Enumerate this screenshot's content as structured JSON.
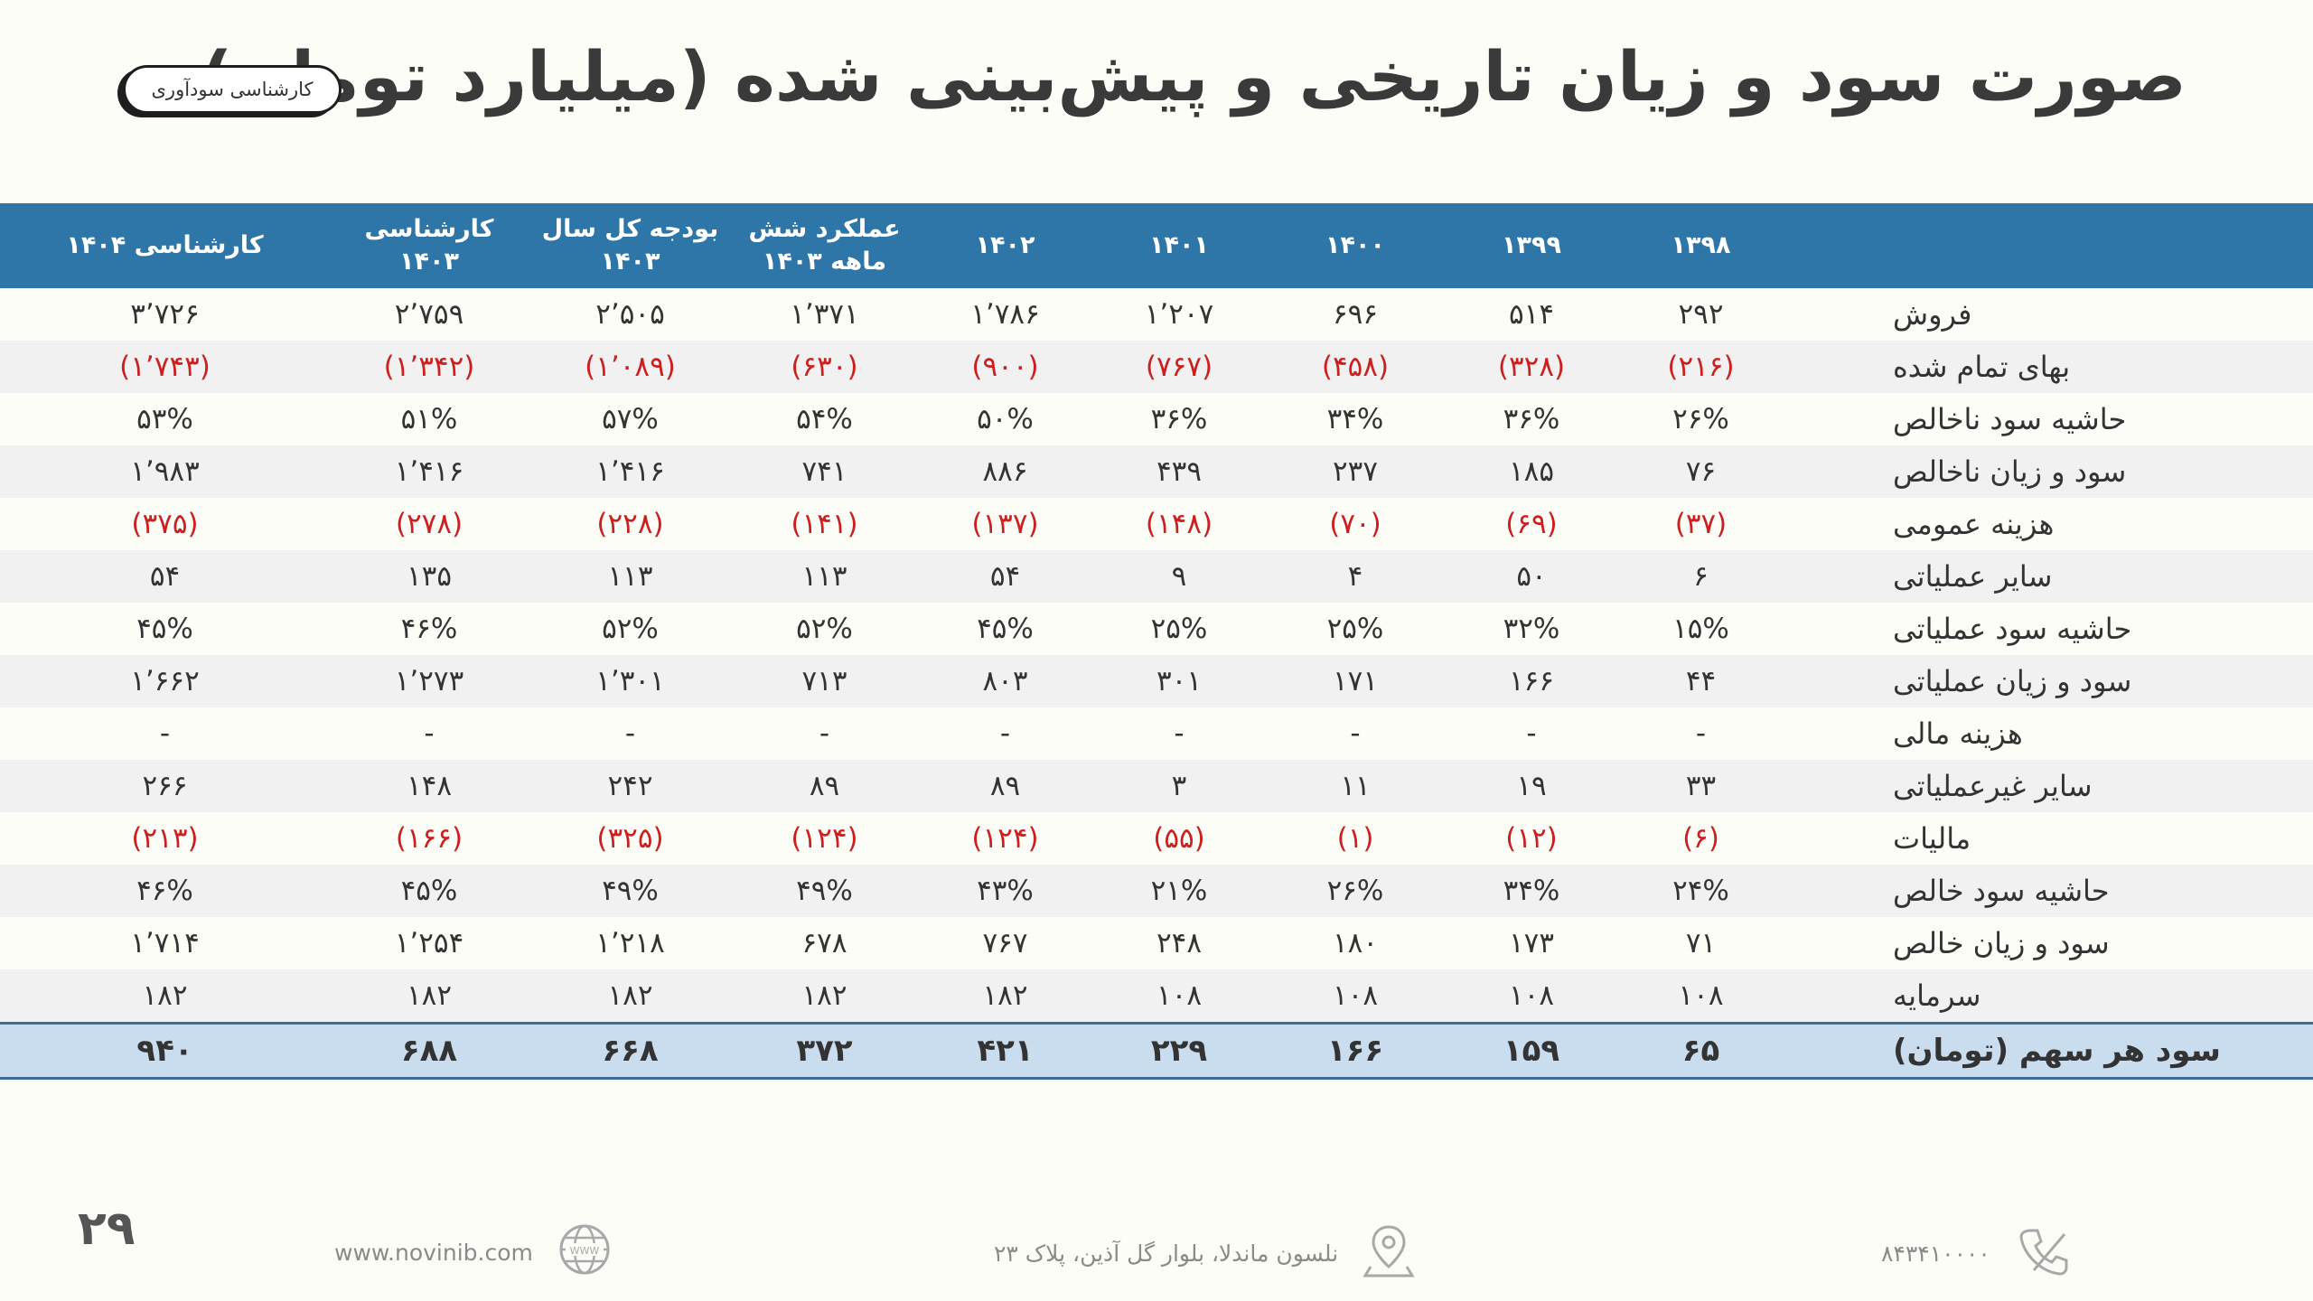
{
  "title": "صورت سود و زیان تاریخی و پیش‌بینی شده (میلیارد تومان)",
  "badge": "کارشناسی سودآوری",
  "table": {
    "headers": [
      "",
      "۱۳۹۸",
      "۱۳۹۹",
      "۱۴۰۰",
      "۱۴۰۱",
      "۱۴۰۲",
      "عملکرد شش ماهه ۱۴۰۳",
      "بودجه کل سال ۱۴۰۳",
      "کارشناسی ۱۴۰۳",
      "کارشناسی ۱۴۰۴"
    ],
    "rows": [
      {
        "label": "فروش",
        "cells": [
          "۲۹۲",
          "۵۱۴",
          "۶۹۶",
          "۱٬۲۰۷",
          "۱٬۷۸۶",
          "۱٬۳۷۱",
          "۲٬۵۰۵",
          "۲٬۷۵۹",
          "۳٬۷۲۶"
        ]
      },
      {
        "label": "بهای تمام شده",
        "cells": [
          "(۲۱۶)",
          "(۳۲۸)",
          "(۴۵۸)",
          "(۷۶۷)",
          "(۹۰۰)",
          "(۶۳۰)",
          "(۱٬۰۸۹)",
          "(۱٬۳۴۲)",
          "(۱٬۷۴۳)"
        ]
      },
      {
        "label": "حاشیه سود ناخالص",
        "cells": [
          "۲۶%",
          "۳۶%",
          "۳۴%",
          "۳۶%",
          "۵۰%",
          "۵۴%",
          "۵۷%",
          "۵۱%",
          "۵۳%"
        ]
      },
      {
        "label": "سود و زیان ناخالص",
        "cells": [
          "۷۶",
          "۱۸۵",
          "۲۳۷",
          "۴۳۹",
          "۸۸۶",
          "۷۴۱",
          "۱٬۴۱۶",
          "۱٬۴۱۶",
          "۱٬۹۸۳"
        ]
      },
      {
        "label": "هزینه عمومی",
        "cells": [
          "(۳۷)",
          "(۶۹)",
          "(۷۰)",
          "(۱۴۸)",
          "(۱۳۷)",
          "(۱۴۱)",
          "(۲۲۸)",
          "(۲۷۸)",
          "(۳۷۵)"
        ]
      },
      {
        "label": "سایر  عملیاتی",
        "cells": [
          "۶",
          "۵۰",
          "۴",
          "۹",
          "۵۴",
          "۱۱۳",
          "۱۱۳",
          "۱۳۵",
          "۵۴"
        ]
      },
      {
        "label": "حاشیه سود عملیاتی",
        "cells": [
          "۱۵%",
          "۳۲%",
          "۲۵%",
          "۲۵%",
          "۴۵%",
          "۵۲%",
          "۵۲%",
          "۴۶%",
          "۴۵%"
        ]
      },
      {
        "label": "سود و زیان عملیاتی",
        "cells": [
          "۴۴",
          "۱۶۶",
          "۱۷۱",
          "۳۰۱",
          "۸۰۳",
          "۷۱۳",
          "۱٬۳۰۱",
          "۱٬۲۷۳",
          "۱٬۶۶۲"
        ]
      },
      {
        "label": "هزینه مالی",
        "cells": [
          "-",
          "-",
          "-",
          "-",
          "-",
          "-",
          "-",
          "-",
          "-"
        ]
      },
      {
        "label": "سایر غیرعملیاتی",
        "cells": [
          "۳۳",
          "۱۹",
          "۱۱",
          "۳",
          "۸۹",
          "۸۹",
          "۲۴۲",
          "۱۴۸",
          "۲۶۶"
        ]
      },
      {
        "label": "مالیات",
        "cells": [
          "(۶)",
          "(۱۲)",
          "(۱)",
          "(۵۵)",
          "(۱۲۴)",
          "(۱۲۴)",
          "(۳۲۵)",
          "(۱۶۶)",
          "(۲۱۳)"
        ]
      },
      {
        "label": "حاشیه سود خالص",
        "cells": [
          "۲۴%",
          "۳۴%",
          "۲۶%",
          "۲۱%",
          "۴۳%",
          "۴۹%",
          "۴۹%",
          "۴۵%",
          "۴۶%"
        ]
      },
      {
        "label": "سود و زیان خالص",
        "cells": [
          "۷۱",
          "۱۷۳",
          "۱۸۰",
          "۲۴۸",
          "۷۶۷",
          "۶۷۸",
          "۱٬۲۱۸",
          "۱٬۲۵۴",
          "۱٬۷۱۴"
        ]
      },
      {
        "label": "سرمایه",
        "cells": [
          "۱۰۸",
          "۱۰۸",
          "۱۰۸",
          "۱۰۸",
          "۱۸۲",
          "۱۸۲",
          "۱۸۲",
          "۱۸۲",
          "۱۸۲"
        ]
      }
    ],
    "total": {
      "label": "سود هر سهم (تومان)",
      "cells": [
        "۶۵",
        "۱۵۹",
        "۱۶۶",
        "۲۲۹",
        "۴۲۱",
        "۳۷۲",
        "۶۶۸",
        "۶۸۸",
        "۹۴۰"
      ]
    }
  },
  "footer": {
    "phone": "۸۴۳۴۱۰۰۰۰",
    "address": "نلسون ماندلا، بلوار گل آذین، پلاک ۲۳",
    "website": "www.novinib.com",
    "page_number": "۲۹"
  },
  "colors": {
    "header": "#2f76a8",
    "negative": "#cc1f1f",
    "total_row": "#c9ddef"
  },
  "icons": {
    "phone": "phone-icon",
    "address": "location-pin-icon",
    "website": "globe-icon"
  }
}
